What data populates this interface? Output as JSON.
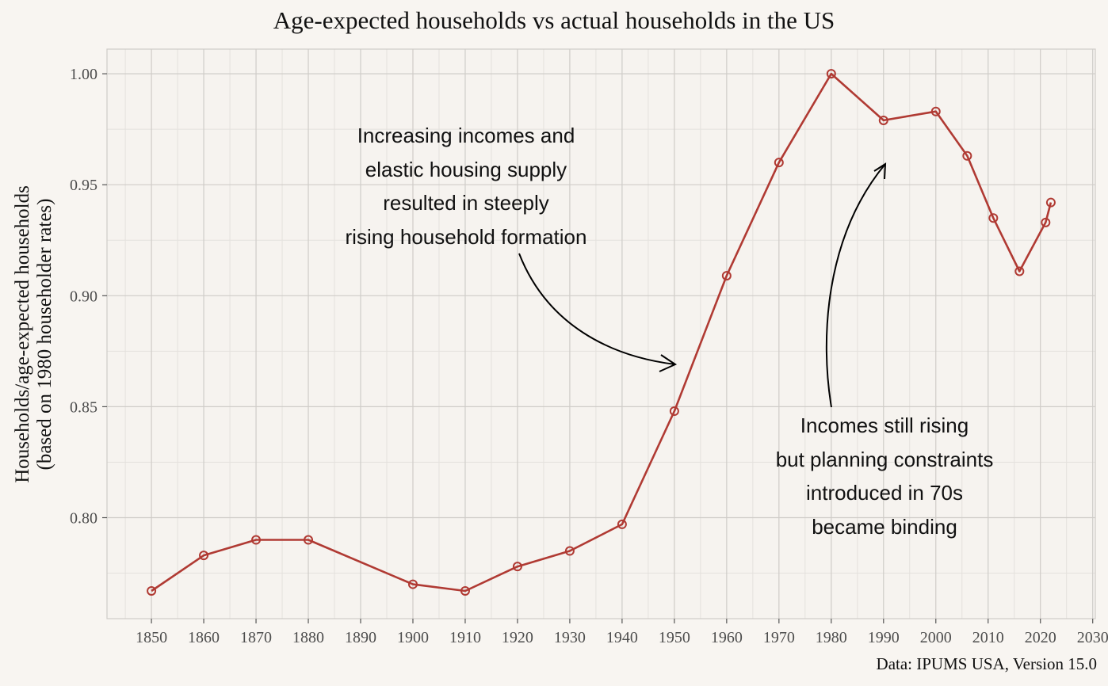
{
  "chart_data": {
    "type": "line",
    "title": "Age-expected households vs actual households in the US",
    "ylabel_line1": "Households/age-expected households",
    "ylabel_line2": "(based on 1980 householder rates)",
    "xlabel": "",
    "caption": "Data: IPUMS USA, Version 15.0",
    "xlim": [
      1841.5,
      2030.5
    ],
    "ylim": [
      0.7545,
      1.0111
    ],
    "x_ticks": [
      1850,
      1860,
      1870,
      1880,
      1890,
      1900,
      1910,
      1920,
      1930,
      1940,
      1950,
      1960,
      1970,
      1980,
      1990,
      2000,
      2010,
      2020,
      2030
    ],
    "y_ticks": [
      0.8,
      0.85,
      0.9,
      0.95,
      1.0
    ],
    "y_tick_labels": [
      "0.80",
      "0.85",
      "0.90",
      "0.95",
      "1.00"
    ],
    "grid": true,
    "line_color": "#b03a33",
    "series": [
      {
        "x": [
          1850,
          1860,
          1870,
          1880,
          1900,
          1910,
          1920,
          1930,
          1940,
          1950,
          1960,
          1970,
          1980,
          1990,
          2000,
          2006,
          2011,
          2016,
          2021,
          2022
        ],
        "values": [
          0.767,
          0.783,
          0.79,
          0.79,
          0.77,
          0.767,
          0.778,
          0.785,
          0.797,
          0.848,
          0.909,
          0.96,
          1.0,
          0.979,
          0.983,
          0.963,
          0.935,
          0.911,
          0.933,
          0.942
        ]
      }
    ],
    "annotations": [
      {
        "text": "Increasing incomes and\nelastic housing supply\nresulted in steeply\nrising household formation"
      },
      {
        "text": "Incomes still rising\nbut planning constraints\nintroduced in 70s\nbecame binding"
      }
    ]
  }
}
